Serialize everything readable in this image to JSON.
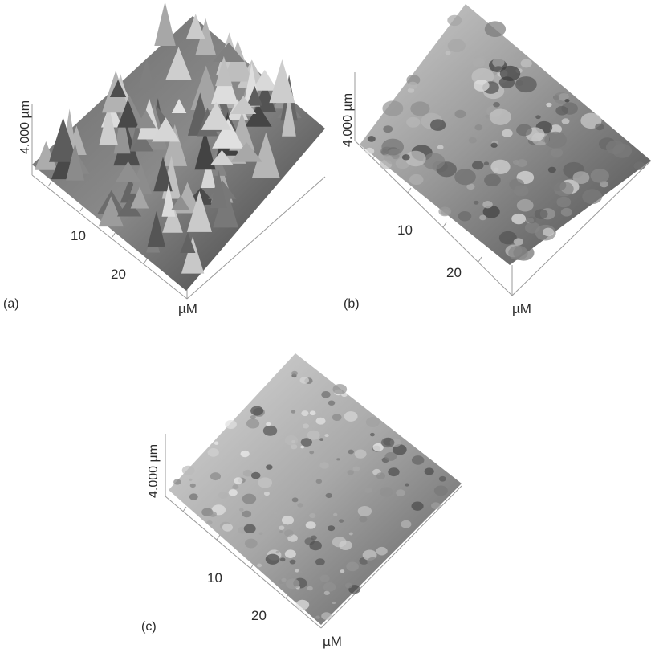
{
  "figure": {
    "panels": [
      {
        "id": "a",
        "label": "(a)",
        "z_axis_label": "4.000 µm",
        "tick_10": "10",
        "tick_20": "20",
        "unit_label": "µM",
        "surface": "rough-peaked"
      },
      {
        "id": "b",
        "label": "(b)",
        "z_axis_label": "4.000 µm",
        "tick_10": "10",
        "tick_20": "20",
        "unit_label": "µM",
        "surface": "moderately-rough"
      },
      {
        "id": "c",
        "label": "(c)",
        "z_axis_label": "4.000 µm",
        "tick_10": "10",
        "tick_20": "20",
        "unit_label": "µM",
        "surface": "smooth-granular"
      }
    ],
    "colors": {
      "surface_light": "#f2f2f2",
      "surface_dark": "#1e1e1e",
      "axis": "#9a9a9a"
    }
  }
}
